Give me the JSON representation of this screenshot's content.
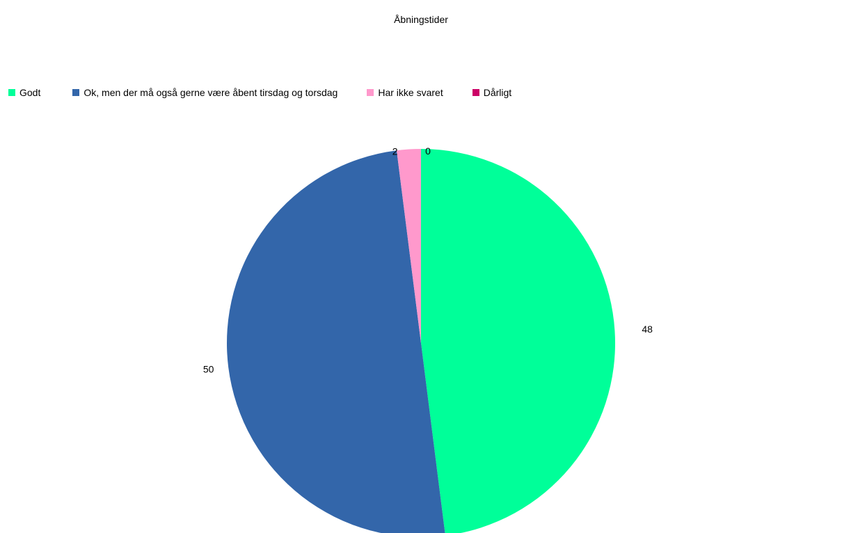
{
  "chart_data": {
    "type": "pie",
    "title": "Åbningstider",
    "categories": [
      "Godt",
      "Ok, men der må også gerne være åbent tirsdag og torsdag",
      "Har ikke svaret",
      "Dårligt"
    ],
    "values": [
      48,
      50,
      2,
      0
    ],
    "colors": [
      "#00ff99",
      "#3366aa",
      "#ff99cc",
      "#cc0066"
    ],
    "legend_position": "top",
    "data_labels": true
  }
}
